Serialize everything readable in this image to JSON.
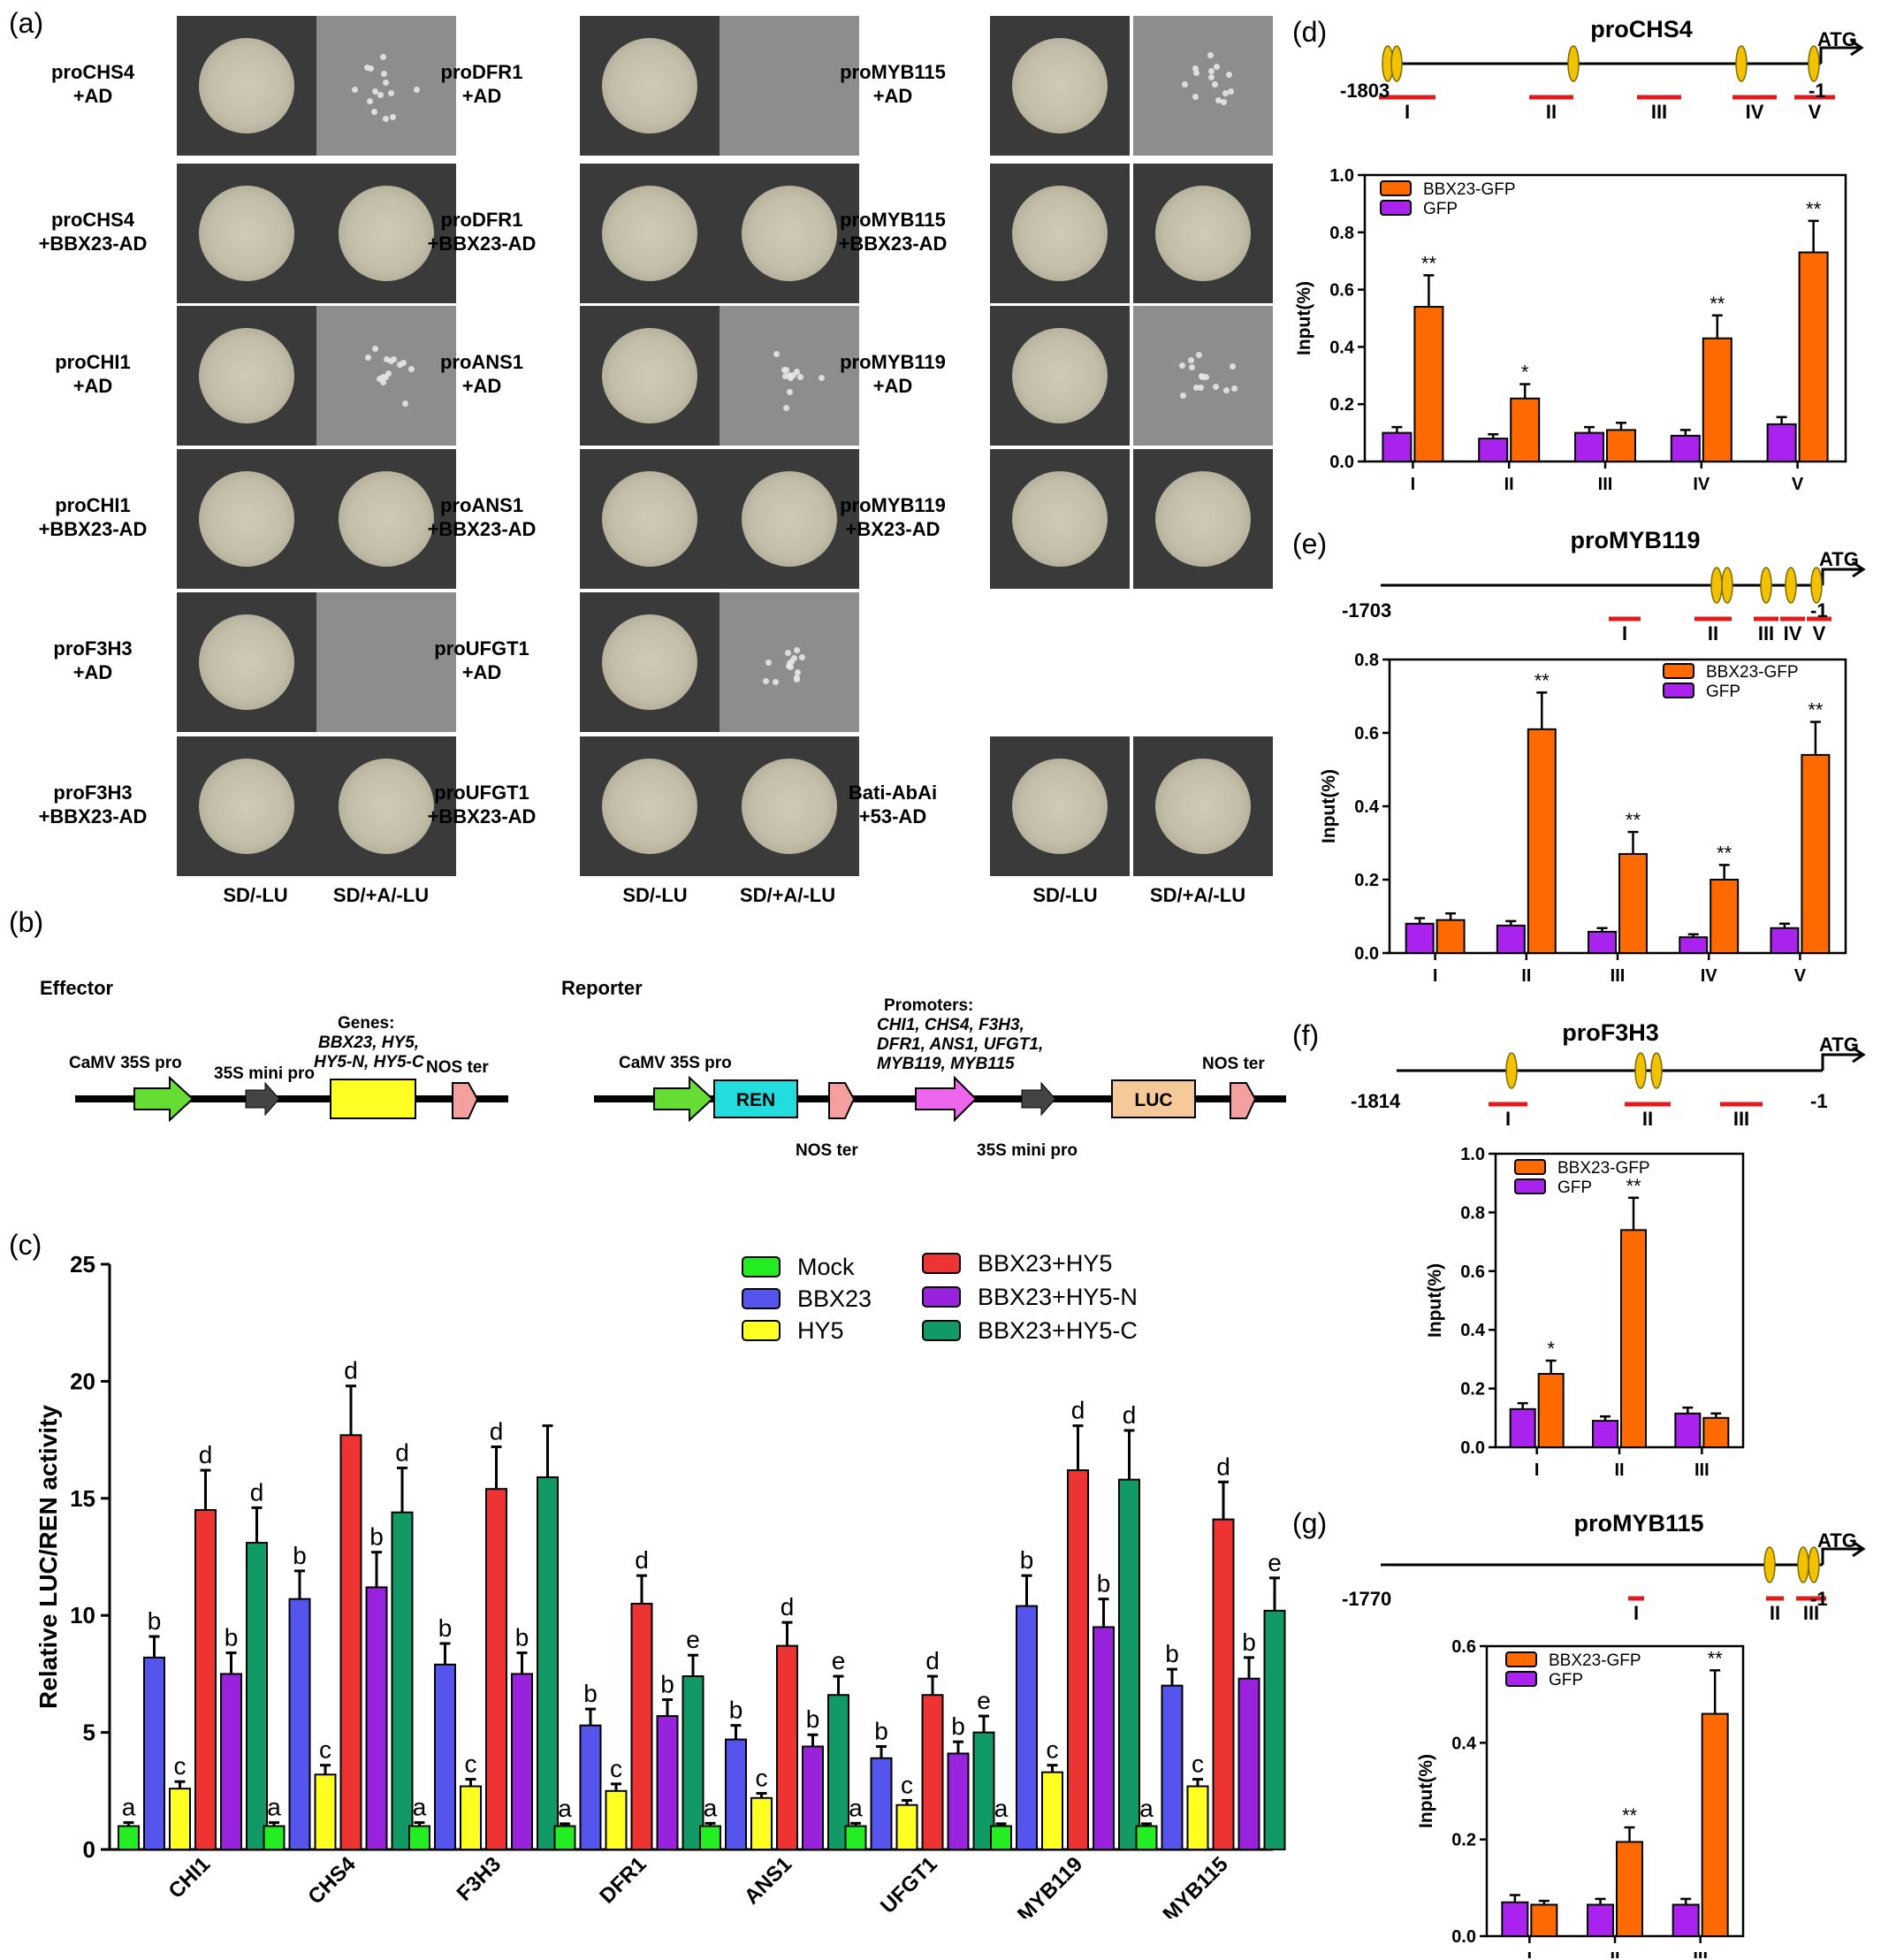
{
  "panel_letters": {
    "a": "(a)",
    "b": "(b)",
    "c": "(c)",
    "d": "(d)",
    "e": "(e)",
    "f": "(f)",
    "g": "(g)"
  },
  "yeast": {
    "columns": [
      {
        "rows": [
          {
            "label": "proCHS4\n+AD",
            "right_growth": "sparse"
          },
          {
            "label": "proCHS4\n+BBX23-AD",
            "right_growth": "full"
          },
          {
            "label": "proCHI1\n+AD",
            "right_growth": "sparse"
          },
          {
            "label": "proCHI1\n+BBX23-AD",
            "right_growth": "full"
          },
          {
            "label": "proF3H3\n+AD",
            "right_growth": "none"
          },
          {
            "label": "proF3H3\n+BBX23-AD",
            "right_growth": "full"
          }
        ]
      },
      {
        "rows": [
          {
            "label": "proDFR1\n+AD",
            "right_growth": "none"
          },
          {
            "label": "proDFR1\n+BBX23-AD",
            "right_growth": "full"
          },
          {
            "label": "proANS1\n+AD",
            "right_growth": "sparse"
          },
          {
            "label": "proANS1\n+BBX23-AD",
            "right_growth": "full"
          },
          {
            "label": "proUFGT1\n+AD",
            "right_growth": "sparse"
          },
          {
            "label": "proUFGT1\n+BBX23-AD",
            "right_growth": "full"
          }
        ]
      },
      {
        "rows": [
          {
            "label": "proMYB115\n+AD",
            "right_growth": "sparse"
          },
          {
            "label": "proMYB115\n+BBX23-AD",
            "right_growth": "full"
          },
          {
            "label": "proMYB119\n+AD",
            "right_growth": "sparse"
          },
          {
            "label": "proMYB119\n+BX23-AD",
            "right_growth": "full"
          },
          {
            "label": "Bati-AbAi\n+53-AD",
            "right_growth": "full"
          }
        ]
      }
    ],
    "media_left": "SD/-LU",
    "media_right": "SD/+A/-LU"
  },
  "constructs": {
    "effector_title": "Effector",
    "reporter_title": "Reporter",
    "caMV": "CaMV 35S pro",
    "mini": "35S mini pro",
    "nos": "NOS ter",
    "genes_title": "Genes:",
    "genes_line1": "BBX23, HY5,",
    "genes_line2": "HY5-N, HY5-C",
    "promoters_title": "Promoters:",
    "promoters_line1": "CHI1, CHS4, F3H3,",
    "promoters_line2": "DFR1, ANS1, UFGT1,",
    "promoters_line3": "MYB119, MYB115",
    "ren": "REN",
    "luc": "LUC",
    "colors": {
      "caMV": "#66dd33",
      "mini": "#444444",
      "gene": "#ffff22",
      "nos": "#f4a0a0",
      "ren": "#22dddd",
      "promoter": "#ee66ee",
      "luc": "#f6c99a"
    }
  },
  "chart_data": [
    {
      "type": "bar",
      "panel": "c",
      "ylabel": "Relative LUC/REN activity",
      "ylim": [
        0,
        25
      ],
      "yticks": [
        0,
        5,
        10,
        15,
        20,
        25
      ],
      "categories": [
        "CHI1",
        "CHS4",
        "F3H3",
        "DFR1",
        "ANS1",
        "UFGT1",
        "MYB119",
        "MYB115"
      ],
      "series": [
        {
          "name": "Mock",
          "color": "#22ee22",
          "values": [
            1,
            1,
            1,
            1,
            1,
            1,
            1,
            1
          ],
          "errors": [
            0.15,
            0.15,
            0.15,
            0.1,
            0.12,
            0.12,
            0.1,
            0.1
          ],
          "letters": [
            "a",
            "a",
            "a",
            "a",
            "a",
            "a",
            "a",
            "a"
          ]
        },
        {
          "name": "BBX23",
          "color": "#5555ee",
          "values": [
            8.2,
            10.7,
            7.9,
            5.3,
            4.7,
            3.9,
            10.4,
            7.0
          ],
          "errors": [
            0.9,
            1.2,
            0.9,
            0.7,
            0.6,
            0.5,
            1.3,
            0.7
          ],
          "letters": [
            "b",
            "b",
            "b",
            "b",
            "b",
            "b",
            "b",
            "b"
          ]
        },
        {
          "name": "HY5",
          "color": "#ffff22",
          "values": [
            2.6,
            3.2,
            2.7,
            2.5,
            2.2,
            1.9,
            3.3,
            2.7
          ],
          "errors": [
            0.3,
            0.4,
            0.3,
            0.3,
            0.2,
            0.2,
            0.3,
            0.3
          ],
          "letters": [
            "c",
            "c",
            "c",
            "c",
            "c",
            "c",
            "c",
            "c"
          ]
        },
        {
          "name": "BBX23+HY5",
          "color": "#ee3333",
          "values": [
            14.5,
            17.7,
            15.4,
            10.5,
            8.7,
            6.6,
            16.2,
            14.1
          ],
          "errors": [
            1.7,
            2.1,
            1.8,
            1.2,
            1.0,
            0.8,
            1.9,
            1.6
          ],
          "letters": [
            "d",
            "d",
            "d",
            "d",
            "d",
            "d",
            "d",
            "d"
          ]
        },
        {
          "name": "BBX23+HY5-N",
          "color": "#9922dd",
          "values": [
            7.5,
            11.2,
            7.5,
            5.7,
            4.4,
            4.1,
            9.5,
            7.3
          ],
          "errors": [
            0.9,
            1.5,
            0.9,
            0.7,
            0.5,
            0.5,
            1.2,
            0.9
          ],
          "letters": [
            "b",
            "b",
            "b",
            "b",
            "b",
            "b",
            "b",
            "b"
          ]
        },
        {
          "name": "BBX23+HY5-C",
          "color": "#119966",
          "values": [
            13.1,
            14.4,
            15.9,
            7.4,
            6.6,
            5.0,
            15.8,
            10.2
          ],
          "errors": [
            1.5,
            1.9,
            2.2,
            0.9,
            0.8,
            0.7,
            2.1,
            1.4
          ],
          "letters": [
            "d",
            "d",
            "",
            "e",
            "e",
            "e",
            "d",
            "e"
          ]
        }
      ]
    },
    {
      "type": "bar",
      "panel": "d",
      "promoter": "proCHS4",
      "start": "-1803",
      "end": "-1",
      "atg": "ATG",
      "ylabel": "Input(%)",
      "ylim": [
        0,
        1.0
      ],
      "yticks": [
        "0.0",
        "0.2",
        "0.4",
        "0.6",
        "0.8",
        "1.0"
      ],
      "categories": [
        "I",
        "II",
        "III",
        "IV",
        "V"
      ],
      "series": [
        {
          "name": "GFP",
          "color": "#aa22ee",
          "values": [
            0.1,
            0.08,
            0.1,
            0.09,
            0.13
          ],
          "errors": [
            0.02,
            0.015,
            0.02,
            0.02,
            0.025
          ]
        },
        {
          "name": "BBX23-GFP",
          "color": "#ff6a00",
          "values": [
            0.54,
            0.22,
            0.11,
            0.43,
            0.73
          ],
          "errors": [
            0.11,
            0.05,
            0.025,
            0.08,
            0.11
          ]
        }
      ],
      "significance": [
        "**",
        "*",
        "",
        "**",
        "**"
      ]
    },
    {
      "type": "bar",
      "panel": "e",
      "promoter": "proMYB119",
      "start": "-1703",
      "end": "-1",
      "atg": "ATG",
      "ylabel": "Input(%)",
      "ylim": [
        0,
        0.8
      ],
      "yticks": [
        "0.0",
        "0.2",
        "0.4",
        "0.6",
        "0.8"
      ],
      "categories": [
        "I",
        "II",
        "III",
        "IV",
        "V"
      ],
      "series": [
        {
          "name": "GFP",
          "color": "#aa22ee",
          "values": [
            0.08,
            0.075,
            0.058,
            0.043,
            0.068
          ],
          "errors": [
            0.015,
            0.012,
            0.01,
            0.008,
            0.012
          ]
        },
        {
          "name": "BBX23-GFP",
          "color": "#ff6a00",
          "values": [
            0.09,
            0.61,
            0.27,
            0.2,
            0.54
          ],
          "errors": [
            0.018,
            0.1,
            0.06,
            0.04,
            0.09
          ]
        }
      ],
      "significance": [
        "",
        "**",
        "**",
        "**",
        "**"
      ]
    },
    {
      "type": "bar",
      "panel": "f",
      "promoter": "proF3H3",
      "start": "-1814",
      "end": "-1",
      "atg": "ATG",
      "ylabel": "Input(%)",
      "ylim": [
        0,
        1.0
      ],
      "yticks": [
        "0.0",
        "0.2",
        "0.4",
        "0.6",
        "0.8",
        "1.0"
      ],
      "categories": [
        "I",
        "II",
        "III"
      ],
      "series": [
        {
          "name": "GFP",
          "color": "#aa22ee",
          "values": [
            0.13,
            0.09,
            0.115
          ],
          "errors": [
            0.02,
            0.015,
            0.02
          ]
        },
        {
          "name": "BBX23-GFP",
          "color": "#ff6a00",
          "values": [
            0.25,
            0.74,
            0.1
          ],
          "errors": [
            0.045,
            0.11,
            0.015
          ]
        }
      ],
      "significance": [
        "*",
        "**",
        ""
      ]
    },
    {
      "type": "bar",
      "panel": "g",
      "promoter": "proMYB115",
      "start": "-1770",
      "end": "-1",
      "atg": "ATG",
      "ylabel": "Input(%)",
      "ylim": [
        0,
        0.6
      ],
      "yticks": [
        "0.0",
        "0.2",
        "0.4",
        "0.6"
      ],
      "categories": [
        "I",
        "II",
        "III"
      ],
      "series": [
        {
          "name": "GFP",
          "color": "#aa22ee",
          "values": [
            0.07,
            0.065,
            0.065
          ],
          "errors": [
            0.015,
            0.012,
            0.012
          ]
        },
        {
          "name": "BBX23-GFP",
          "color": "#ff6a00",
          "values": [
            0.065,
            0.195,
            0.46
          ],
          "errors": [
            0.008,
            0.03,
            0.09
          ]
        }
      ],
      "significance": [
        "",
        "**",
        "**"
      ]
    }
  ]
}
